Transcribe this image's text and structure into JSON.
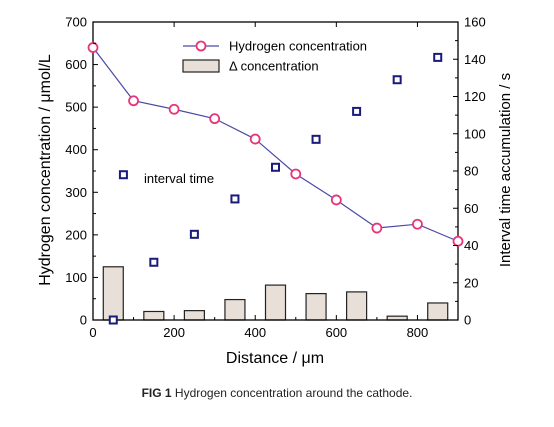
{
  "chart_data": {
    "type": "line",
    "xlabel": "Distance / μm",
    "ylabel_left": "Hydrogen concentration / μmol/L",
    "ylabel_right": "Interval time accumulation / s",
    "xlim": [
      0,
      900
    ],
    "ylim_left": [
      0,
      700
    ],
    "ylim_right": [
      0,
      160
    ],
    "x_ticks": [
      0,
      200,
      400,
      600,
      800
    ],
    "y_ticks_left": [
      0,
      100,
      200,
      300,
      400,
      500,
      600,
      700
    ],
    "y_ticks_right": [
      0,
      20,
      40,
      60,
      80,
      100,
      120,
      140,
      160
    ],
    "legend_position": "top-center",
    "annotation": "interval time",
    "series": [
      {
        "name": "Hydrogen concentration",
        "kind": "line-circle",
        "axis": "left",
        "color": "#e8357a",
        "line_color": "#4a4aa8",
        "x": [
          0,
          100,
          200,
          300,
          400,
          500,
          600,
          700,
          800,
          900
        ],
        "y": [
          640,
          515,
          495,
          473,
          425,
          343,
          282,
          216,
          225,
          185
        ]
      },
      {
        "name": "Δ concentration",
        "kind": "bar",
        "axis": "left",
        "color": "#e8e0d8",
        "x": [
          50,
          150,
          250,
          350,
          450,
          550,
          650,
          750,
          850
        ],
        "y": [
          125,
          20,
          22,
          48,
          82,
          62,
          66,
          9,
          40
        ]
      },
      {
        "kind": "square",
        "axis": "right",
        "color": "#1a1a7a",
        "x": [
          50,
          75,
          150,
          250,
          350,
          450,
          550,
          650,
          750,
          850
        ],
        "y": [
          0,
          78,
          31,
          46,
          65,
          82,
          97,
          112,
          129,
          141
        ]
      }
    ]
  },
  "caption": {
    "label": "FIG 1",
    "text": " Hydrogen concentration around the cathode."
  }
}
